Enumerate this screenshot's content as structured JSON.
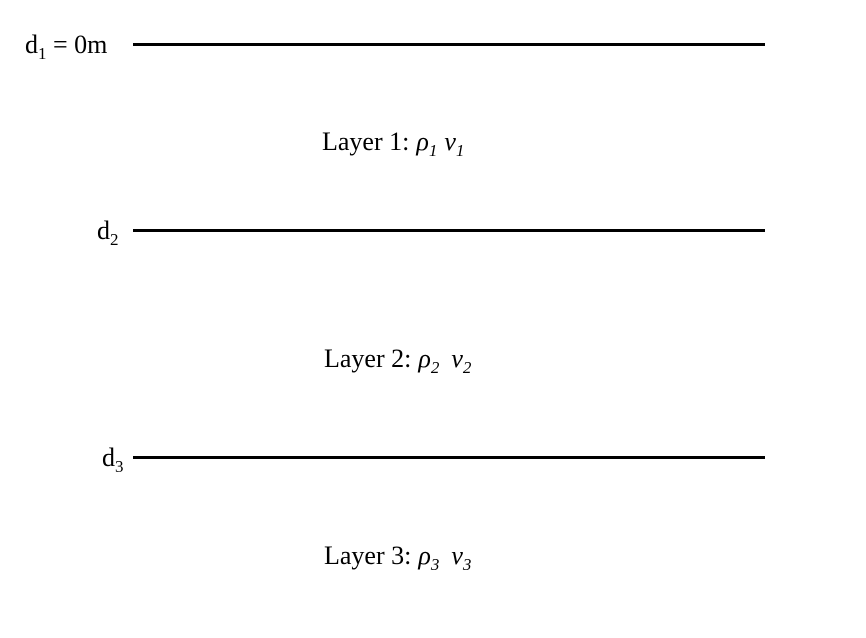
{
  "boundaries": [
    {
      "depth_symbol": "d",
      "depth_sub": "1",
      "depth_suffix": " = 0m"
    },
    {
      "depth_symbol": "d",
      "depth_sub": "2",
      "depth_suffix": ""
    },
    {
      "depth_symbol": "d",
      "depth_sub": "3",
      "depth_suffix": ""
    }
  ],
  "layers": [
    {
      "name": "Layer 1:",
      "density_symbol": "ρ",
      "density_sub": "1",
      "velocity_symbol": "v",
      "velocity_sub": "1"
    },
    {
      "name": "Layer 2:",
      "density_symbol": "ρ",
      "density_sub": "2",
      "velocity_symbol": "v",
      "velocity_sub": "2"
    },
    {
      "name": "Layer 3:",
      "density_symbol": "ρ",
      "density_sub": "3",
      "velocity_symbol": "v",
      "velocity_sub": "3"
    }
  ],
  "colors": {
    "line": "#000000",
    "text": "#000000",
    "background": "#ffffff"
  }
}
